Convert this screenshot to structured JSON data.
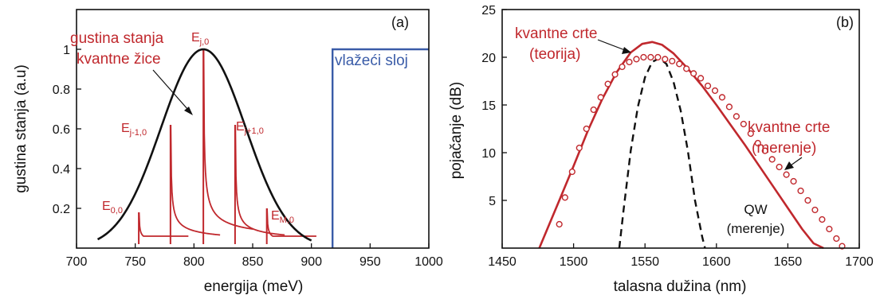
{
  "colors": {
    "red": "#c0282d",
    "blue": "#3a5ca8",
    "black": "#111111"
  },
  "chart_data": [
    {
      "type": "line",
      "panel_label": "(a)",
      "xlabel": "energija (meV)",
      "ylabel": "gustina stanja (a.u)",
      "xlim": [
        700,
        1000
      ],
      "ylim": [
        0,
        1.2
      ],
      "x_ticks": [
        700,
        750,
        800,
        850,
        900,
        950,
        1000
      ],
      "y_ticks": [
        0.2,
        0.4,
        0.6,
        0.8,
        1
      ],
      "x_tick_labels": [
        "700",
        "750",
        "800",
        "850",
        "900",
        "950",
        "1000"
      ],
      "y_tick_labels": [
        "0.2",
        "0.4",
        "0.6",
        "0.8",
        "1"
      ],
      "envelope": {
        "center": 808,
        "sigma": 36,
        "amplitude": 1.0,
        "x_start": 718,
        "x_end": 900
      },
      "subbands": [
        {
          "label": "E0,0",
          "edge": 753,
          "height": 0.18
        },
        {
          "label": "Ej-1,0",
          "edge": 780,
          "height": 0.62
        },
        {
          "label": "Ej,0",
          "edge": 808,
          "height": 1.0
        },
        {
          "label": "Ej+1,0",
          "edge": 835,
          "height": 0.62
        },
        {
          "label": "EM,0",
          "edge": 862,
          "height": 0.2
        }
      ],
      "subband_labels": {
        "e00": {
          "main": "E",
          "sub": "0,0"
        },
        "ejm1": {
          "main": "E",
          "sub": "j-1,0"
        },
        "ej": {
          "main": "E",
          "sub": "j,0"
        },
        "ejp1": {
          "main": "E",
          "sub": "j+1,0"
        },
        "em0": {
          "main": "E",
          "sub": "M,0"
        }
      },
      "annotations": {
        "dos_line1": "gustina stanja",
        "dos_line2": "kvantne žice",
        "wetting_layer": "vlažeći sloj"
      },
      "wetting_layer": {
        "edge": 918,
        "level": 1.0
      }
    },
    {
      "type": "line",
      "panel_label": "(b)",
      "xlabel": "talasna dužina (nm)",
      "ylabel": "pojačanje (dB)",
      "xlim": [
        1450,
        1700
      ],
      "ylim": [
        0,
        25
      ],
      "x_ticks": [
        1450,
        1500,
        1550,
        1600,
        1650,
        1700
      ],
      "y_ticks": [
        5,
        10,
        15,
        20,
        25
      ],
      "x_tick_labels": [
        "1450",
        "1500",
        "1550",
        "1600",
        "1650",
        "1700"
      ],
      "y_tick_labels": [
        "5",
        "10",
        "15",
        "20",
        "25"
      ],
      "series": [
        {
          "name": "kvantne crte (teorija)",
          "style": "solid",
          "x": [
            1476,
            1490,
            1500,
            1510,
            1520,
            1530,
            1540,
            1548,
            1555,
            1562,
            1570,
            1580,
            1590,
            1600,
            1610,
            1620,
            1630,
            1640,
            1650,
            1660,
            1668,
            1675
          ],
          "y": [
            0,
            5.0,
            8.6,
            12.3,
            15.6,
            18.4,
            20.5,
            21.4,
            21.6,
            21.3,
            20.4,
            18.8,
            17.0,
            15.0,
            12.9,
            10.8,
            8.6,
            6.4,
            4.2,
            2.0,
            0.5,
            0
          ]
        },
        {
          "name": "kvantne crte (merenje)",
          "style": "markers",
          "x": [
            1490,
            1494,
            1499,
            1504,
            1509,
            1514,
            1519,
            1524,
            1529,
            1534,
            1539,
            1544,
            1549,
            1554,
            1559,
            1564,
            1569,
            1574,
            1579,
            1584,
            1589,
            1594,
            1599,
            1604,
            1609,
            1614,
            1619,
            1624,
            1629,
            1634,
            1639,
            1644,
            1649,
            1654,
            1659,
            1664,
            1669,
            1674,
            1679,
            1684,
            1688
          ],
          "y": [
            2.5,
            5.3,
            8.0,
            10.5,
            12.5,
            14.5,
            15.8,
            17.2,
            18.2,
            19.0,
            19.5,
            19.8,
            20.0,
            20.0,
            20.0,
            19.8,
            19.6,
            19.3,
            18.8,
            18.3,
            17.8,
            17.0,
            16.5,
            15.8,
            14.8,
            13.8,
            13.0,
            12.0,
            11.0,
            10.2,
            9.3,
            8.5,
            7.7,
            7.0,
            6.0,
            5.0,
            4.0,
            3.0,
            2.0,
            1.0,
            0.2
          ]
        },
        {
          "name": "QW (merenje)",
          "style": "dashed",
          "x": [
            1532,
            1535,
            1540,
            1545,
            1550,
            1555,
            1560,
            1565,
            1570,
            1575,
            1580,
            1585,
            1590,
            1592
          ],
          "y": [
            0,
            4.0,
            10.2,
            14.8,
            17.9,
            19.5,
            19.9,
            19.3,
            17.4,
            14.4,
            10.2,
            5.0,
            1.2,
            0
          ]
        }
      ],
      "annotations": {
        "theory_line1": "kvantne crte",
        "theory_line2": "(teorija)",
        "meas_line1": "kvantne crte",
        "meas_line2": "(merenje)",
        "qw_line1": "QW",
        "qw_line2": "(merenje)"
      }
    }
  ]
}
